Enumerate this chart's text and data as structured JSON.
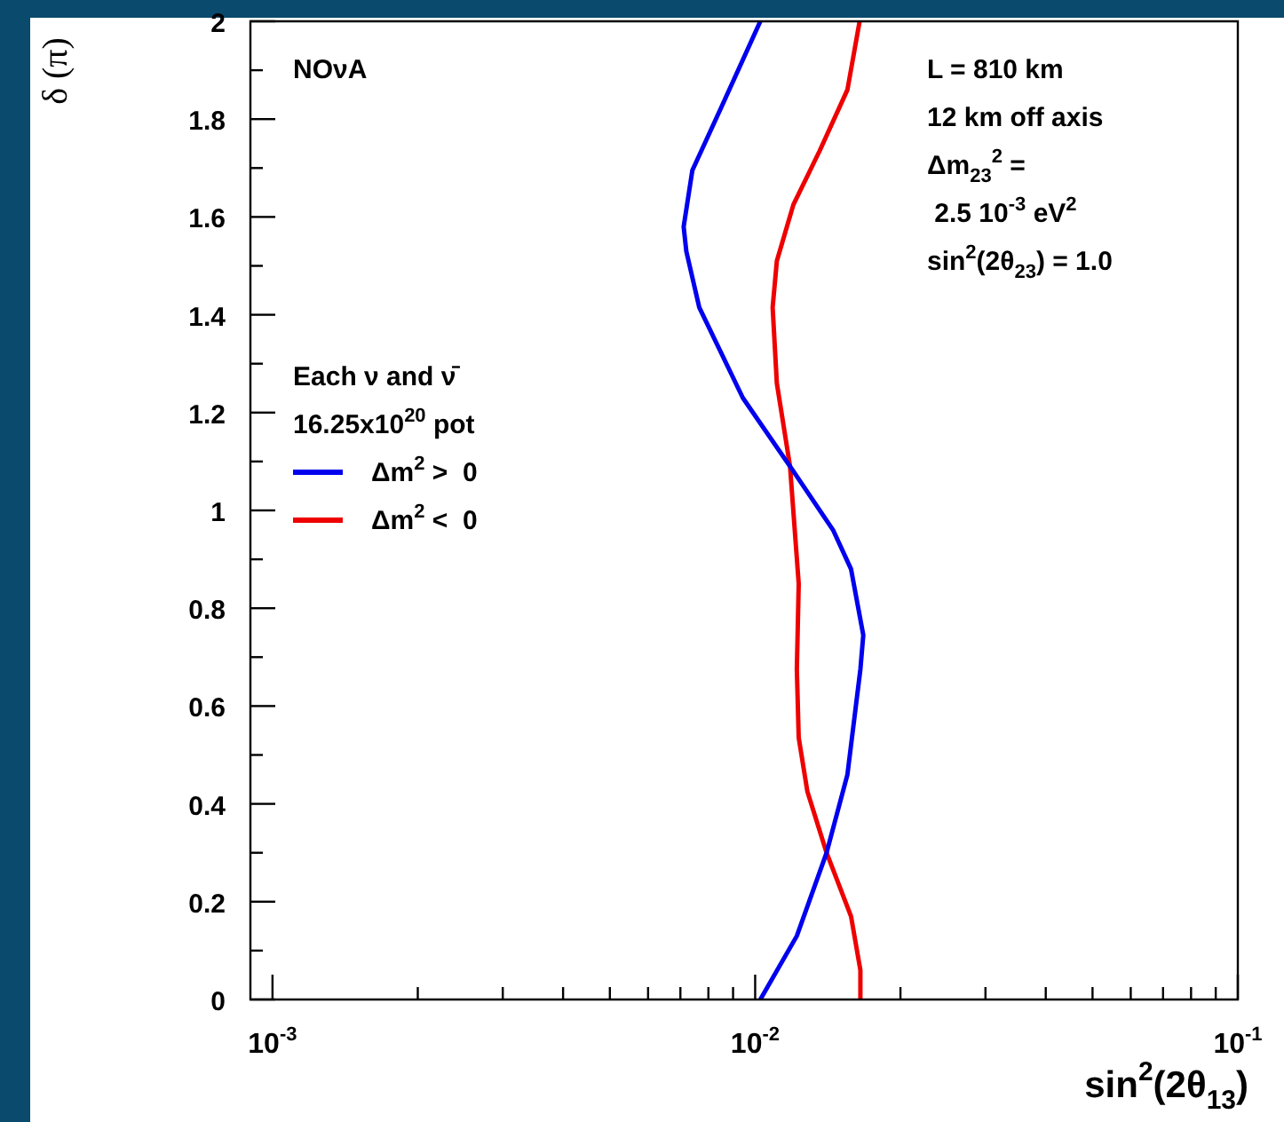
{
  "chart_data": {
    "type": "line",
    "xlabel": "sin$^{2}$(2θ$_{13}$)",
    "ylabel": "δ (π)",
    "legend_title": "Each ν and ν̄\n16.25x10$^{20}$ pot",
    "legend": "left",
    "log": "x",
    "xlim": [
      0.0009,
      0.1
    ],
    "ylim": [
      0,
      2
    ],
    "xticks": [
      {
        "value": 0.001,
        "label": "10$^{-3}$"
      },
      {
        "value": 0.002,
        "label": null
      },
      {
        "value": 0.003,
        "label": null
      },
      {
        "value": 0.004,
        "label": null
      },
      {
        "value": 0.005,
        "label": null
      },
      {
        "value": 0.006,
        "label": null
      },
      {
        "value": 0.007,
        "label": null
      },
      {
        "value": 0.008,
        "label": null
      },
      {
        "value": 0.009,
        "label": null
      },
      {
        "value": 0.01,
        "label": "10$^{-2}$"
      },
      {
        "value": 0.02,
        "label": null
      },
      {
        "value": 0.03,
        "label": null
      },
      {
        "value": 0.04,
        "label": null
      },
      {
        "value": 0.05,
        "label": null
      },
      {
        "value": 0.06,
        "label": null
      },
      {
        "value": 0.07,
        "label": null
      },
      {
        "value": 0.08,
        "label": null
      },
      {
        "value": 0.09,
        "label": null
      },
      {
        "value": 0.1,
        "label": "10$^{-1}$"
      }
    ],
    "yticks": [
      0,
      {
        "value": 0.1,
        "label": null
      },
      0.2,
      {
        "value": 0.3,
        "label": null
      },
      0.4,
      {
        "value": 0.5,
        "label": null
      },
      0.6,
      {
        "value": 0.7,
        "label": null
      },
      0.8,
      {
        "value": 0.9,
        "label": null
      },
      1,
      {
        "value": 1.1,
        "label": null
      },
      1.2,
      {
        "value": 1.3,
        "label": null
      },
      1.4,
      {
        "value": 1.5,
        "label": null
      },
      1.6,
      {
        "value": 1.7,
        "label": null
      },
      1.8,
      {
        "value": 1.9,
        "label": null
      },
      2
    ],
    "annotations": [
      "NOνA",
      "L = 810 km",
      "12 km off axis",
      "Δm$_{23}$$^{2}$ =",
      " 2.5 10$^{-3}$ eV$^{2}$",
      "sin$^{2}$(2θ$_{23}$) = 1.0"
    ],
    "series": [
      {
        "name": "Δm$^{2}$ >  0",
        "color": "#0000ee",
        "x": [
          0.01025,
          0.0122,
          0.01406,
          0.01553,
          0.01652,
          0.01675,
          0.0158,
          0.0145,
          0.012,
          0.00943,
          0.00766,
          0.0072,
          0.00711,
          0.00741,
          0.00847,
          0.01025
        ],
        "values": [
          0,
          0.13,
          0.3,
          0.46,
          0.675,
          0.745,
          0.88,
          0.96,
          1.08,
          1.23,
          1.415,
          1.53,
          1.58,
          1.695,
          1.82,
          2
        ]
      },
      {
        "name": "Δm$^{2}$ <  0",
        "color": "#ee0000",
        "x": [
          0.01652,
          0.01652,
          0.0158,
          0.01406,
          0.01283,
          0.01231,
          0.0122,
          0.01231,
          0.01181,
          0.01109,
          0.01087,
          0.01109,
          0.012,
          0.0136,
          0.01553,
          0.01646
        ],
        "values": [
          0,
          0.06,
          0.17,
          0.3,
          0.425,
          0.535,
          0.675,
          0.85,
          1.09,
          1.26,
          1.415,
          1.51,
          1.625,
          1.735,
          1.86,
          2
        ]
      }
    ]
  }
}
